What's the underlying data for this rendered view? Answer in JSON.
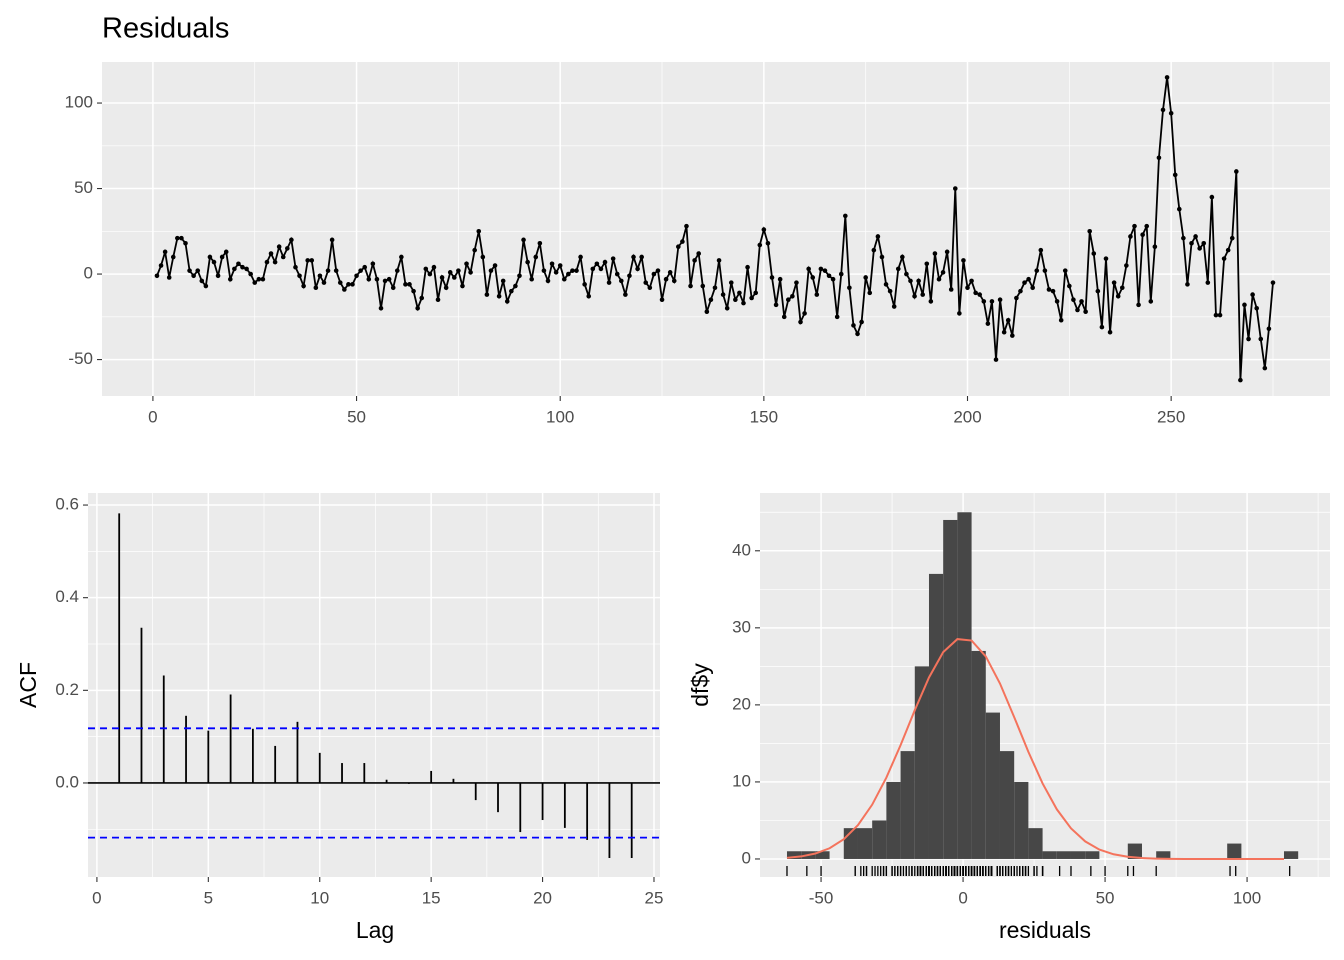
{
  "chart_data": [
    {
      "type": "line",
      "title": "Residuals",
      "color": "#000000",
      "markers": true,
      "grid": true,
      "x": [
        1,
        2,
        3,
        4,
        5,
        6,
        7,
        8,
        9,
        10,
        11,
        12,
        13,
        14,
        15,
        16,
        17,
        18,
        19,
        20,
        21,
        22,
        23,
        24,
        25,
        26,
        27,
        28,
        29,
        30,
        31,
        32,
        33,
        34,
        35,
        36,
        37,
        38,
        39,
        40,
        41,
        42,
        43,
        44,
        45,
        46,
        47,
        48,
        49,
        50,
        51,
        52,
        53,
        54,
        55,
        56,
        57,
        58,
        59,
        60,
        61,
        62,
        63,
        64,
        65,
        66,
        67,
        68,
        69,
        70,
        71,
        72,
        73,
        74,
        75,
        76,
        77,
        78,
        79,
        80,
        81,
        82,
        83,
        84,
        85,
        86,
        87,
        88,
        89,
        90,
        91,
        92,
        93,
        94,
        95,
        96,
        97,
        98,
        99,
        100,
        101,
        102,
        103,
        104,
        105,
        106,
        107,
        108,
        109,
        110,
        111,
        112,
        113,
        114,
        115,
        116,
        117,
        118,
        119,
        120,
        121,
        122,
        123,
        124,
        125,
        126,
        127,
        128,
        129,
        130,
        131,
        132,
        133,
        134,
        135,
        136,
        137,
        138,
        139,
        140,
        141,
        142,
        143,
        144,
        145,
        146,
        147,
        148,
        149,
        150,
        151,
        152,
        153,
        154,
        155,
        156,
        157,
        158,
        159,
        160,
        161,
        162,
        163,
        164,
        165,
        166,
        167,
        168,
        169,
        170,
        171,
        172,
        173,
        174,
        175,
        176,
        177,
        178,
        179,
        180,
        181,
        182,
        183,
        184,
        185,
        186,
        187,
        188,
        189,
        190,
        191,
        192,
        193,
        194,
        195,
        196,
        197,
        198,
        199,
        200,
        201,
        202,
        203,
        204,
        205,
        206,
        207,
        208,
        209,
        210,
        211,
        212,
        213,
        214,
        215,
        216,
        217,
        218,
        219,
        220,
        221,
        222,
        223,
        224,
        225,
        226,
        227,
        228,
        229,
        230,
        231,
        232,
        233,
        234,
        235,
        236,
        237,
        238,
        239,
        240,
        241,
        242,
        243,
        244,
        245,
        246,
        247,
        248,
        249,
        250,
        251,
        252,
        253,
        254,
        255,
        256,
        257,
        258,
        259,
        260,
        261,
        262,
        263,
        264,
        265,
        266,
        267,
        268,
        269,
        270,
        271,
        272,
        273,
        274,
        275
      ],
      "values": [
        -1,
        5,
        13,
        -2,
        10,
        21,
        21,
        18,
        2,
        -1,
        2,
        -4,
        -7,
        10,
        7,
        -1,
        10,
        13,
        -3,
        3,
        6,
        4,
        3,
        0,
        -5,
        -3,
        -3,
        7,
        12,
        7,
        16,
        10,
        15,
        20,
        4,
        -1,
        -7,
        8,
        8,
        -8,
        -1,
        -5,
        2,
        20,
        2,
        -5,
        -9,
        -6,
        -6,
        -1,
        2,
        4,
        -3,
        6,
        -3,
        -20,
        -4,
        -3,
        -8,
        2,
        10,
        -6,
        -6,
        -10,
        -20,
        -14,
        3,
        0,
        4,
        -15,
        -2,
        -8,
        1,
        -2,
        2,
        -7,
        6,
        1,
        14,
        25,
        10,
        -12,
        2,
        5,
        -13,
        -4,
        -16,
        -10,
        -7,
        -1,
        20,
        7,
        -3,
        10,
        18,
        2,
        -4,
        6,
        1,
        5,
        -3,
        0,
        2,
        2,
        10,
        -6,
        -13,
        3,
        6,
        3,
        7,
        -5,
        9,
        0,
        -4,
        -12,
        -1,
        10,
        3,
        10,
        -5,
        -8,
        0,
        2,
        -15,
        -3,
        1,
        -4,
        16,
        19,
        28,
        -7,
        8,
        12,
        -7,
        -22,
        -15,
        -8,
        8,
        -12,
        -20,
        -5,
        -15,
        -11,
        -17,
        4,
        -14,
        -11,
        17,
        26,
        18,
        -2,
        -18,
        -3,
        -25,
        -15,
        -13,
        -5,
        -28,
        -23,
        3,
        -2,
        -12,
        3,
        2,
        -1,
        -3,
        -25,
        0,
        34,
        -8,
        -30,
        -35,
        -28,
        -2,
        -11,
        14,
        22,
        10,
        -6,
        -10,
        -19,
        3,
        10,
        0,
        -4,
        -13,
        -4,
        -12,
        6,
        -16,
        12,
        -3,
        1,
        13,
        -9,
        50,
        -23,
        8,
        -8,
        -4,
        -11,
        -12,
        -16,
        -29,
        -16,
        -50,
        -15,
        -34,
        -27,
        -36,
        -14,
        -10,
        -5,
        -3,
        -8,
        2,
        14,
        2,
        -9,
        -10,
        -16,
        -27,
        2,
        -7,
        -15,
        -21,
        -16,
        -22,
        25,
        12,
        -10,
        -31,
        9,
        -34,
        -5,
        -13,
        -8,
        5,
        22,
        28,
        -18,
        23,
        28,
        -16,
        16,
        68,
        96,
        115,
        94,
        58,
        38,
        21,
        -6,
        18,
        22,
        15,
        18,
        -5,
        45,
        -24,
        -24,
        9,
        14,
        21,
        60,
        -62,
        -18,
        -38,
        -12,
        -20,
        -38,
        -55,
        -32,
        -5
      ],
      "xlim": [
        -12.5,
        289
      ],
      "ylim": [
        -71.3,
        124
      ],
      "xticks": [
        0,
        50,
        100,
        150,
        200,
        250
      ],
      "yticks": [
        -50,
        0,
        50,
        100
      ]
    },
    {
      "type": "stem",
      "x_label": "Lag",
      "y_label": "ACF",
      "color": "#000000",
      "grid": true,
      "x": [
        1,
        2,
        3,
        4,
        5,
        6,
        7,
        8,
        9,
        10,
        11,
        12,
        13,
        14,
        15,
        16,
        17,
        18,
        19,
        20,
        21,
        22,
        23,
        24
      ],
      "values": [
        0.582,
        0.335,
        0.232,
        0.145,
        0.113,
        0.191,
        0.117,
        0.08,
        0.132,
        0.065,
        0.043,
        0.043,
        0.007,
        -0.002,
        0.026,
        0.009,
        -0.037,
        -0.063,
        -0.106,
        -0.08,
        -0.097,
        -0.123,
        -0.162,
        -0.162
      ],
      "hlines": [
        0.118,
        -0.118
      ],
      "hline_color": "#0000ff",
      "xlim": [
        -0.4,
        25.27
      ],
      "ylim": [
        -0.203,
        0.626
      ],
      "xticks": [
        0,
        5,
        10,
        15,
        20,
        25
      ],
      "yticks": [
        {
          "value": 0,
          "label": "0.0"
        },
        0.2,
        0.4,
        0.6
      ]
    },
    {
      "type": "histogram",
      "x_label": "residuals",
      "y_label": "df$y",
      "color": "#474747",
      "curve_color": "#f4735c",
      "rug": true,
      "grid": true,
      "bins": [
        -62,
        -57,
        -52,
        -47,
        -42,
        -37,
        -32,
        -27,
        -22,
        -17,
        -12,
        -7,
        -2,
        3,
        8,
        13,
        18,
        23,
        28,
        33,
        38,
        43,
        48,
        53,
        58,
        63,
        68,
        73,
        78,
        83,
        88,
        93,
        98,
        103,
        108,
        113,
        118
      ],
      "values": [
        1,
        1,
        1,
        0,
        4,
        4,
        5,
        10,
        14,
        25,
        37,
        44,
        45,
        27,
        19,
        14,
        10,
        4,
        1,
        1,
        1,
        1,
        0,
        0,
        2,
        0,
        1,
        0,
        0,
        0,
        0,
        2,
        0,
        0,
        0,
        1
      ],
      "density": {
        "x": [
          -62,
          -57,
          -52,
          -47,
          -42,
          -37,
          -32,
          -27,
          -22,
          -17,
          -12,
          -7,
          -2,
          3,
          8,
          13,
          18,
          23,
          28,
          33,
          38,
          43,
          48,
          53,
          58,
          63,
          68,
          73,
          78,
          83,
          88,
          93,
          98,
          103,
          108,
          113
        ],
        "values": [
          0.15,
          0.33,
          0.71,
          1.39,
          2.56,
          4.4,
          7.05,
          10.57,
          14.78,
          19.31,
          23.56,
          26.84,
          28.54,
          28.35,
          26.29,
          22.77,
          18.41,
          13.9,
          9.8,
          6.45,
          3.97,
          2.28,
          1.22,
          0.61,
          0.29,
          0.12,
          0.05,
          0.02,
          0,
          0,
          0,
          0,
          0,
          0,
          0,
          0
        ]
      },
      "xlim": [
        -71.5,
        129.2
      ],
      "ylim": [
        -2.34,
        47.5
      ],
      "xticks": [
        -50,
        0,
        50,
        100
      ],
      "yticks": [
        0,
        10,
        20,
        30,
        40
      ]
    }
  ]
}
